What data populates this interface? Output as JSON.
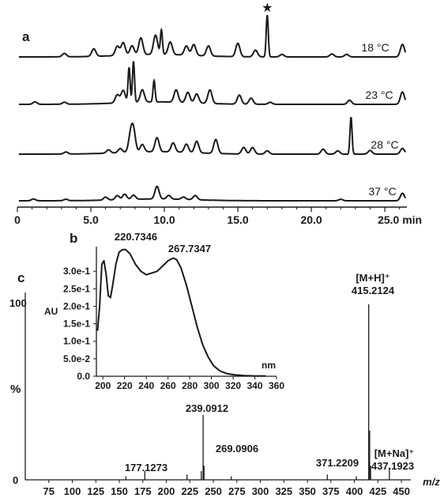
{
  "chart_data": [
    {
      "panel": "a",
      "type": "line",
      "x_unit": "min",
      "xlim": [
        0,
        26.5
      ],
      "x_ticks": [
        0,
        5.0,
        10.0,
        15.0,
        20.0,
        25.0
      ],
      "x_tick_labels": [
        "0",
        "5.0",
        "10.0",
        "15.0",
        "20.0",
        "25.0 min"
      ],
      "marker": {
        "symbol": "★",
        "color": "#e8322b",
        "x": 17.0,
        "series": "18 °C"
      },
      "series": [
        {
          "name": "18 °C",
          "peaks": [
            [
              3.2,
              0.08
            ],
            [
              5.2,
              0.18
            ],
            [
              6.8,
              0.22
            ],
            [
              7.2,
              0.3
            ],
            [
              7.8,
              0.22
            ],
            [
              8.4,
              0.4
            ],
            [
              9.4,
              0.46
            ],
            [
              9.8,
              0.58
            ],
            [
              10.4,
              0.3
            ],
            [
              11.5,
              0.22
            ],
            [
              12.0,
              0.26
            ],
            [
              13.0,
              0.24
            ],
            [
              15.0,
              0.32
            ],
            [
              16.2,
              0.16
            ],
            [
              17.0,
              1.0
            ],
            [
              18.0,
              0.06
            ],
            [
              21.4,
              0.07
            ],
            [
              22.4,
              0.06
            ],
            [
              26.2,
              0.3
            ]
          ]
        },
        {
          "name": "23 °C",
          "peaks": [
            [
              1.2,
              0.06
            ],
            [
              3.2,
              0.05
            ],
            [
              6.8,
              0.2
            ],
            [
              7.2,
              0.3
            ],
            [
              7.6,
              0.85
            ],
            [
              7.9,
              1.0
            ],
            [
              8.5,
              0.3
            ],
            [
              9.3,
              0.52
            ],
            [
              10.8,
              0.3
            ],
            [
              11.6,
              0.25
            ],
            [
              12.2,
              0.22
            ],
            [
              13.1,
              0.33
            ],
            [
              15.1,
              0.22
            ],
            [
              15.9,
              0.15
            ],
            [
              17.2,
              0.05
            ],
            [
              22.6,
              0.1
            ],
            [
              26.2,
              0.3
            ]
          ]
        },
        {
          "name": "28 °C",
          "peaks": [
            [
              3.3,
              0.05
            ],
            [
              6.2,
              0.08
            ],
            [
              7.0,
              0.1
            ],
            [
              7.7,
              0.4
            ],
            [
              7.9,
              0.5
            ],
            [
              8.5,
              0.18
            ],
            [
              9.5,
              0.34
            ],
            [
              10.6,
              0.22
            ],
            [
              11.5,
              0.2
            ],
            [
              12.2,
              0.28
            ],
            [
              13.5,
              0.34
            ],
            [
              15.4,
              0.16
            ],
            [
              16.0,
              0.16
            ],
            [
              17.0,
              0.08
            ],
            [
              20.8,
              0.12
            ],
            [
              21.8,
              0.08
            ],
            [
              22.7,
              0.9
            ],
            [
              24.0,
              0.09
            ],
            [
              26.2,
              0.14
            ]
          ]
        },
        {
          "name": "37 °C",
          "peaks": [
            [
              1.1,
              0.06
            ],
            [
              3.3,
              0.05
            ],
            [
              6.0,
              0.1
            ],
            [
              6.8,
              0.14
            ],
            [
              7.3,
              0.18
            ],
            [
              7.9,
              0.14
            ],
            [
              9.5,
              0.42
            ],
            [
              10.3,
              0.12
            ],
            [
              11.3,
              0.08
            ],
            [
              12.1,
              0.14
            ],
            [
              22.0,
              0.05
            ],
            [
              26.2,
              0.25
            ]
          ]
        }
      ]
    },
    {
      "panel": "b",
      "type": "line",
      "xlabel": "nm",
      "ylabel": "AU",
      "xlim": [
        194,
        360
      ],
      "ylim": [
        0,
        0.375
      ],
      "x_ticks": [
        200,
        220,
        240,
        260,
        280,
        300,
        320,
        340,
        360
      ],
      "x_tick_labels": [
        "200",
        "220",
        "240",
        "260",
        "280",
        "300",
        "320",
        "340",
        "360"
      ],
      "y_ticks": [
        0,
        0.05,
        0.1,
        0.15,
        0.2,
        0.25,
        0.3
      ],
      "y_tick_labels": [
        "0.0",
        "5.0e-2",
        "1.0e-1",
        "1.5e-1",
        "2.0e-1",
        "2.5e-1",
        "3.0e-1"
      ],
      "x": [
        195,
        197,
        199,
        201,
        203,
        205,
        207,
        209,
        212,
        215,
        218,
        221,
        225,
        230,
        235,
        240,
        245,
        250,
        255,
        260,
        265,
        268,
        272,
        277,
        282,
        287,
        292,
        297,
        302,
        308,
        315,
        322,
        330,
        340,
        350
      ],
      "values": [
        0.13,
        0.2,
        0.32,
        0.33,
        0.29,
        0.23,
        0.225,
        0.26,
        0.32,
        0.355,
        0.362,
        0.362,
        0.35,
        0.32,
        0.3,
        0.29,
        0.295,
        0.3,
        0.315,
        0.33,
        0.338,
        0.333,
        0.31,
        0.26,
        0.2,
        0.14,
        0.09,
        0.055,
        0.03,
        0.015,
        0.007,
        0.004,
        0.002,
        0.001,
        0.001
      ],
      "peak_labels": [
        "220.7346",
        "267.7347"
      ]
    },
    {
      "panel": "c",
      "type": "bar",
      "xlabel": "m/z",
      "ylabel": "%",
      "xlim": [
        50,
        460
      ],
      "ylim": [
        0,
        100
      ],
      "x_ticks": [
        75,
        100,
        125,
        150,
        175,
        200,
        225,
        250,
        275,
        300,
        325,
        350,
        375,
        400,
        425,
        450
      ],
      "x_tick_labels": [
        "75",
        "100",
        "125",
        "150",
        "175",
        "200",
        "225",
        "250",
        "275",
        "300",
        "325",
        "350",
        "375",
        "400",
        "425",
        "450"
      ],
      "y_tick_labels": [
        "0",
        "%",
        "100"
      ],
      "x": [
        157,
        177.1,
        222,
        237.2,
        239.1,
        240.1,
        269.1,
        371.2,
        402,
        415.2,
        416.2,
        417.2,
        437.2
      ],
      "values": [
        2,
        5,
        3,
        5,
        37,
        8,
        2,
        3,
        2,
        100,
        28,
        8,
        7
      ],
      "peak_labels": [
        "239.0912",
        "269.0906",
        "177.1273",
        "371.2209",
        "415.2124",
        "437.1923"
      ],
      "adduct_labels": [
        "[M+H]⁺",
        "[M+Na]⁺"
      ]
    }
  ],
  "panel_labels": [
    "a",
    "b",
    "c"
  ],
  "colors": {
    "trace": "#1a1a1a",
    "accent": "#e8322b"
  }
}
